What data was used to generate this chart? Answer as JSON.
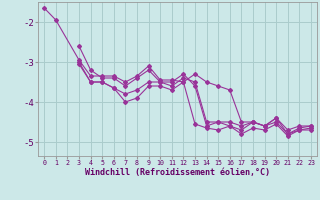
{
  "xlabel": "Windchill (Refroidissement éolien,°C)",
  "background_color": "#cce8e8",
  "grid_color": "#aacccc",
  "line_color": "#993399",
  "xlim_min": -0.5,
  "xlim_max": 23.5,
  "ylim_min": -5.35,
  "ylim_max": -1.5,
  "yticks": [
    -5,
    -4,
    -3,
    -2
  ],
  "num_xticks": 24,
  "series": [
    [
      0,
      -1.65,
      1,
      -1.95,
      3,
      -2.95,
      4,
      -3.35,
      5,
      -3.35,
      6,
      -3.35,
      7,
      -3.5,
      8,
      -3.35,
      9,
      -3.1,
      10,
      -3.45,
      11,
      -3.45,
      12,
      -3.5,
      13,
      -3.3,
      14,
      -3.5,
      15,
      -3.6,
      16,
      -3.7,
      17,
      -4.5,
      18,
      -4.5,
      19,
      -4.6,
      20,
      -4.4,
      21,
      -4.7,
      22,
      -4.6,
      23,
      -4.6
    ],
    [
      3,
      -2.6,
      4,
      -3.2,
      5,
      -3.4,
      6,
      -3.4,
      7,
      -3.6,
      8,
      -3.4,
      9,
      -3.2,
      10,
      -3.5,
      11,
      -3.5,
      12,
      -3.3,
      13,
      -3.6,
      14,
      -4.6,
      15,
      -4.5,
      16,
      -4.5,
      17,
      -4.6,
      18,
      -4.5,
      19,
      -4.6,
      20,
      -4.4,
      21,
      -4.8,
      22,
      -4.7,
      23,
      -4.7
    ],
    [
      3,
      -3.0,
      4,
      -3.5,
      5,
      -3.5,
      6,
      -3.65,
      7,
      -3.8,
      8,
      -3.7,
      9,
      -3.5,
      10,
      -3.5,
      11,
      -3.6,
      12,
      -3.4,
      13,
      -3.5,
      14,
      -4.5,
      15,
      -4.5,
      16,
      -4.6,
      17,
      -4.7,
      18,
      -4.5,
      19,
      -4.6,
      20,
      -4.5,
      21,
      -4.8,
      22,
      -4.65,
      23,
      -4.6
    ],
    [
      3,
      -3.05,
      4,
      -3.5,
      5,
      -3.5,
      6,
      -3.65,
      7,
      -4.0,
      8,
      -3.9,
      9,
      -3.6,
      10,
      -3.6,
      11,
      -3.7,
      12,
      -3.5,
      13,
      -4.55,
      14,
      -4.65,
      15,
      -4.7,
      16,
      -4.6,
      17,
      -4.8,
      18,
      -4.65,
      19,
      -4.7,
      20,
      -4.55,
      21,
      -4.85,
      22,
      -4.7,
      23,
      -4.65
    ]
  ]
}
